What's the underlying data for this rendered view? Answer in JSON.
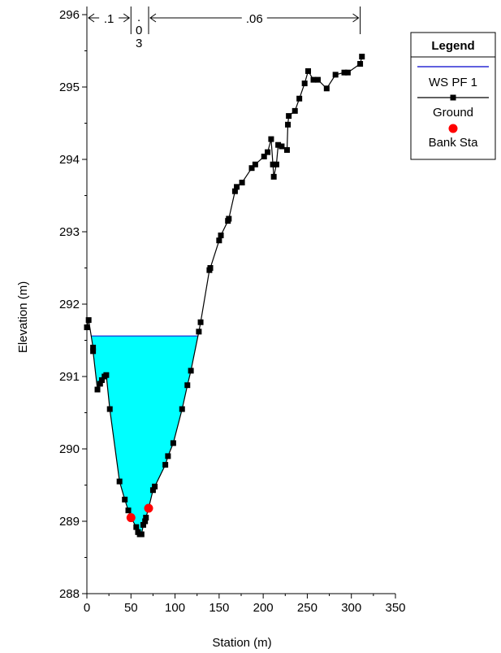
{
  "chart_data": {
    "type": "line",
    "xlabel": "Station (m)",
    "ylabel": "Elevation (m)",
    "xlim": [
      0,
      350
    ],
    "ylim": [
      288,
      296
    ],
    "xticks": [
      "0",
      "50",
      "100",
      "150",
      "200",
      "250",
      "300",
      "350"
    ],
    "yticks": [
      "288",
      "289",
      "290",
      "291",
      "292",
      "293",
      "294",
      "295",
      "296"
    ],
    "roughness": {
      "left": ".1",
      "channel": [
        ".",
        "0",
        "3"
      ],
      "right": ".06"
    },
    "roughness_breaks": [
      0,
      50,
      70,
      310
    ],
    "legend": {
      "title": "Legend",
      "items": [
        {
          "label": "WS PF 1",
          "color": "#0000cc",
          "style": "line"
        },
        {
          "label": "Ground",
          "color": "#000000",
          "style": "line-square"
        },
        {
          "label": "Bank Sta",
          "color": "#ff0000",
          "style": "circle"
        }
      ]
    },
    "ws_elevation": 291.56,
    "ws_fill_color": "#00ffff",
    "ground": [
      [
        0,
        291.68
      ],
      [
        2,
        291.78
      ],
      [
        7,
        291.4
      ],
      [
        7,
        291.35
      ],
      [
        12,
        290.82
      ],
      [
        15,
        290.9
      ],
      [
        17,
        290.95
      ],
      [
        20,
        291.0
      ],
      [
        22,
        291.02
      ],
      [
        26,
        290.55
      ],
      [
        37,
        289.55
      ],
      [
        43,
        289.3
      ],
      [
        47,
        289.15
      ],
      [
        50,
        289.05
      ],
      [
        56,
        288.92
      ],
      [
        58,
        288.85
      ],
      [
        60,
        288.82
      ],
      [
        62,
        288.82
      ],
      [
        64,
        288.95
      ],
      [
        66,
        289.0
      ],
      [
        67,
        289.05
      ],
      [
        70,
        289.18
      ],
      [
        75,
        289.43
      ],
      [
        77,
        289.48
      ],
      [
        89,
        289.78
      ],
      [
        92,
        289.9
      ],
      [
        98,
        290.08
      ],
      [
        108,
        290.55
      ],
      [
        114,
        290.88
      ],
      [
        118,
        291.08
      ],
      [
        127,
        291.62
      ],
      [
        129,
        291.75
      ],
      [
        139,
        292.47
      ],
      [
        140,
        292.5
      ],
      [
        150,
        292.88
      ],
      [
        152,
        292.95
      ],
      [
        160,
        293.15
      ],
      [
        161,
        293.18
      ],
      [
        168,
        293.56
      ],
      [
        170,
        293.62
      ],
      [
        176,
        293.68
      ],
      [
        187,
        293.88
      ],
      [
        191,
        293.93
      ],
      [
        201,
        294.04
      ],
      [
        205,
        294.1
      ],
      [
        209,
        294.28
      ],
      [
        211,
        293.93
      ],
      [
        212,
        293.76
      ],
      [
        215,
        293.93
      ],
      [
        217,
        294.2
      ],
      [
        221,
        294.18
      ],
      [
        227,
        294.13
      ],
      [
        228,
        294.48
      ],
      [
        229,
        294.6
      ],
      [
        236,
        294.67
      ],
      [
        241,
        294.84
      ],
      [
        247,
        295.05
      ],
      [
        251,
        295.22
      ],
      [
        257,
        295.1
      ],
      [
        262,
        295.1
      ],
      [
        272,
        294.98
      ],
      [
        282,
        295.17
      ],
      [
        292,
        295.2
      ],
      [
        296,
        295.2
      ],
      [
        310,
        295.32
      ],
      [
        312,
        295.42
      ]
    ],
    "bank_stations": [
      [
        50,
        289.05
      ],
      [
        70,
        289.18
      ]
    ]
  }
}
